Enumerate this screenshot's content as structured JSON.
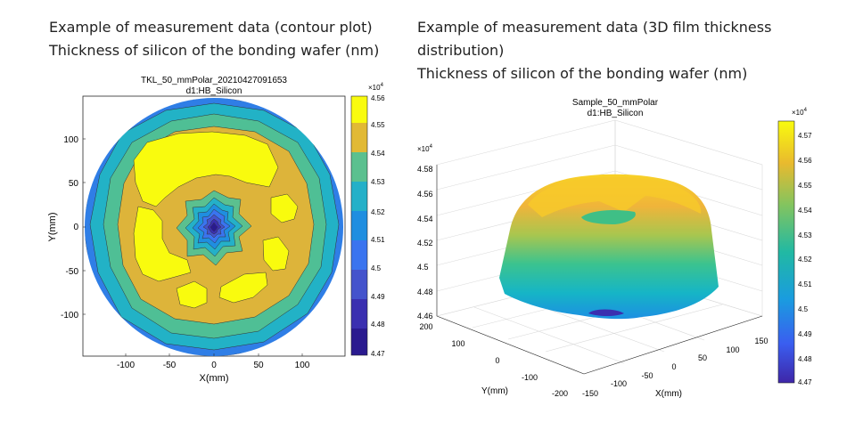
{
  "captions": {
    "left": [
      "Example of measurement data (contour plot)",
      "Thickness of silicon of the bonding wafer (nm)"
    ],
    "right": [
      "Example of measurement data (3D film thickness",
      "distribution)",
      "Thickness of silicon of the bonding wafer (nm)"
    ]
  },
  "chart_data": [
    {
      "type": "heatmap",
      "subtype": "filled-contour",
      "title": "TKL_50_mmPolar_20210427091653",
      "subtitle": "d1:HB_Silicon",
      "xlabel": "X(mm)",
      "ylabel": "Y(mm)",
      "xlim": [
        -150,
        150
      ],
      "ylim": [
        -150,
        150
      ],
      "xticks": [
        -100,
        -50,
        0,
        50,
        100
      ],
      "yticks": [
        100,
        50,
        0,
        -50,
        -100
      ],
      "colorbar": {
        "multiplier": "×10",
        "exponent": "4",
        "ticks": [
          "4.56",
          "4.55",
          "4.54",
          "4.53",
          "4.52",
          "4.51",
          "4.5",
          "4.49",
          "4.48",
          "4.47"
        ],
        "range": [
          44700,
          45600
        ]
      },
      "levels": [
        {
          "min": 45500,
          "max": 45600,
          "color": "#f9fb0e"
        },
        {
          "min": 45400,
          "max": 45500,
          "color": "#e1b935"
        },
        {
          "min": 45300,
          "max": 45400,
          "color": "#5bc08f"
        },
        {
          "min": 45200,
          "max": 45300,
          "color": "#24b0c8"
        },
        {
          "min": 45100,
          "max": 45200,
          "color": "#1f8ee0"
        },
        {
          "min": 45000,
          "max": 45100,
          "color": "#3a74ef"
        },
        {
          "min": 44900,
          "max": 45000,
          "color": "#4453cc"
        },
        {
          "min": 44800,
          "max": 44900,
          "color": "#3a2fb0"
        },
        {
          "min": 44700,
          "max": 44800,
          "color": "#2a1a8f"
        }
      ],
      "grid": false
    },
    {
      "type": "surface3d",
      "title": "Sample_50_mmPolar",
      "subtitle": "d1:HB_Silicon",
      "xlabel": "X(mm)",
      "ylabel": "Y(mm)",
      "zlabel": "",
      "zlim": [
        44600,
        45800
      ],
      "z_multiplier": "×10",
      "z_exponent": "4",
      "zticks": [
        "4.58",
        "4.56",
        "4.54",
        "4.52",
        "4.5",
        "4.48",
        "4.46"
      ],
      "xticks": [
        "-150",
        "-100",
        "-50",
        "0",
        "50",
        "100",
        "150"
      ],
      "yticks": [
        "200",
        "100",
        "0",
        "-100",
        "-200"
      ],
      "colorbar": {
        "multiplier": "×10",
        "exponent": "4",
        "ticks": [
          "4.57",
          "4.56",
          "4.55",
          "4.54",
          "4.53",
          "4.52",
          "4.51",
          "4.5",
          "4.49",
          "4.48",
          "4.47"
        ],
        "range": [
          44700,
          45750
        ]
      },
      "grid": true
    }
  ]
}
